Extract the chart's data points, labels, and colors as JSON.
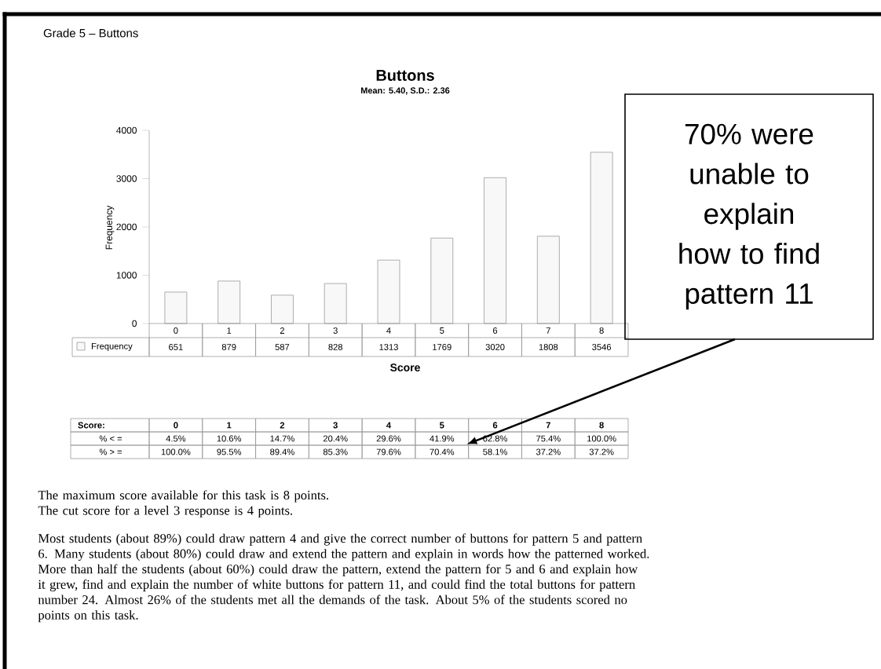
{
  "chart_data": {
    "type": "bar",
    "title": "Buttons",
    "subtitle": "Mean: 5.40, S.D.: 2.36",
    "xlabel": "Score",
    "ylabel": "Frequency",
    "categories": [
      "0",
      "1",
      "2",
      "3",
      "4",
      "5",
      "6",
      "7",
      "8"
    ],
    "series": [
      {
        "name": "Frequency",
        "color": "#f8f8f8",
        "values": [
          651,
          879,
          587,
          828,
          1313,
          1769,
          3020,
          1808,
          3546
        ]
      }
    ],
    "ylim": [
      0,
      4000
    ],
    "yticks": [
      0,
      1000,
      2000,
      3000,
      4000
    ],
    "data_labels": true,
    "legend": "bottom left",
    "annotations": [
      "Grade 5 – Buttons",
      "70% were unable to explain how to find pattern 11",
      "Score:",
      "% < =",
      "4.5%",
      "10.6%",
      "14.7%",
      "20.4%",
      "29.6%",
      "41.9%",
      "62.8%",
      "75.4%",
      "100.0%",
      "% > =",
      "100.0%",
      "95.5%",
      "89.4%",
      "85.3%",
      "79.6%",
      "70.4%",
      "58.1%",
      "37.2%",
      "37.2%",
      "The maximum score available for this task is 8 points.",
      "The cut score for a level 3 response is 4 points.",
      "Most students (about 89%) could draw pattern 4 and give the correct number of buttons for pattern 5 and pattern 6. Many students (about 80%) could draw and extend the pattern and explain in words how the patterned worked. More than half the students (about 60%) could draw the pattern, extend the pattern for 5 and 6 and explain how it grew, find and explain the number of white buttons for pattern 11, and could find the total buttons for pattern number 24. Almost 26% of the students met all the demands of the task. About 5% of the students scored no points on this task."
    ]
  }
}
